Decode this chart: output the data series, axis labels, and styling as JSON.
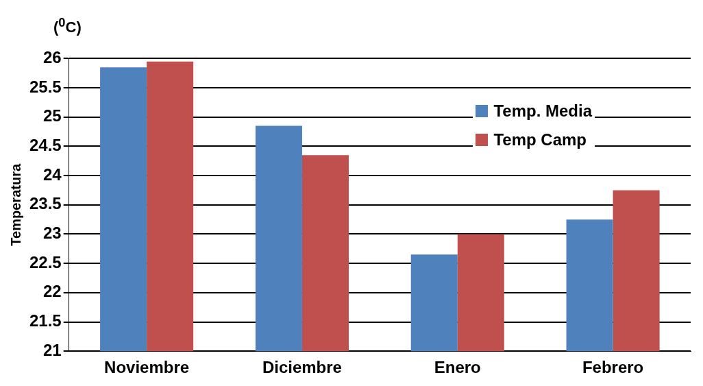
{
  "chart_data": {
    "type": "bar",
    "title": "($^{0}$C)",
    "ylabel": "Temperatura",
    "categories": [
      "Noviembre",
      "Diciembre",
      "Enero",
      "Febrero"
    ],
    "series": [
      {
        "name": "Temp. Media",
        "color": "#4f81bd",
        "values": [
          25.85,
          24.85,
          22.65,
          23.25
        ]
      },
      {
        "name": "Temp Camp",
        "color": "#c0504d",
        "values": [
          25.95,
          24.35,
          23.0,
          23.75
        ]
      }
    ],
    "ylim": [
      21,
      26
    ],
    "yticks": [
      21,
      21.5,
      22,
      22.5,
      23,
      23.5,
      24,
      24.5,
      25,
      25.5,
      26
    ],
    "grid": "y",
    "legend": "top right"
  }
}
